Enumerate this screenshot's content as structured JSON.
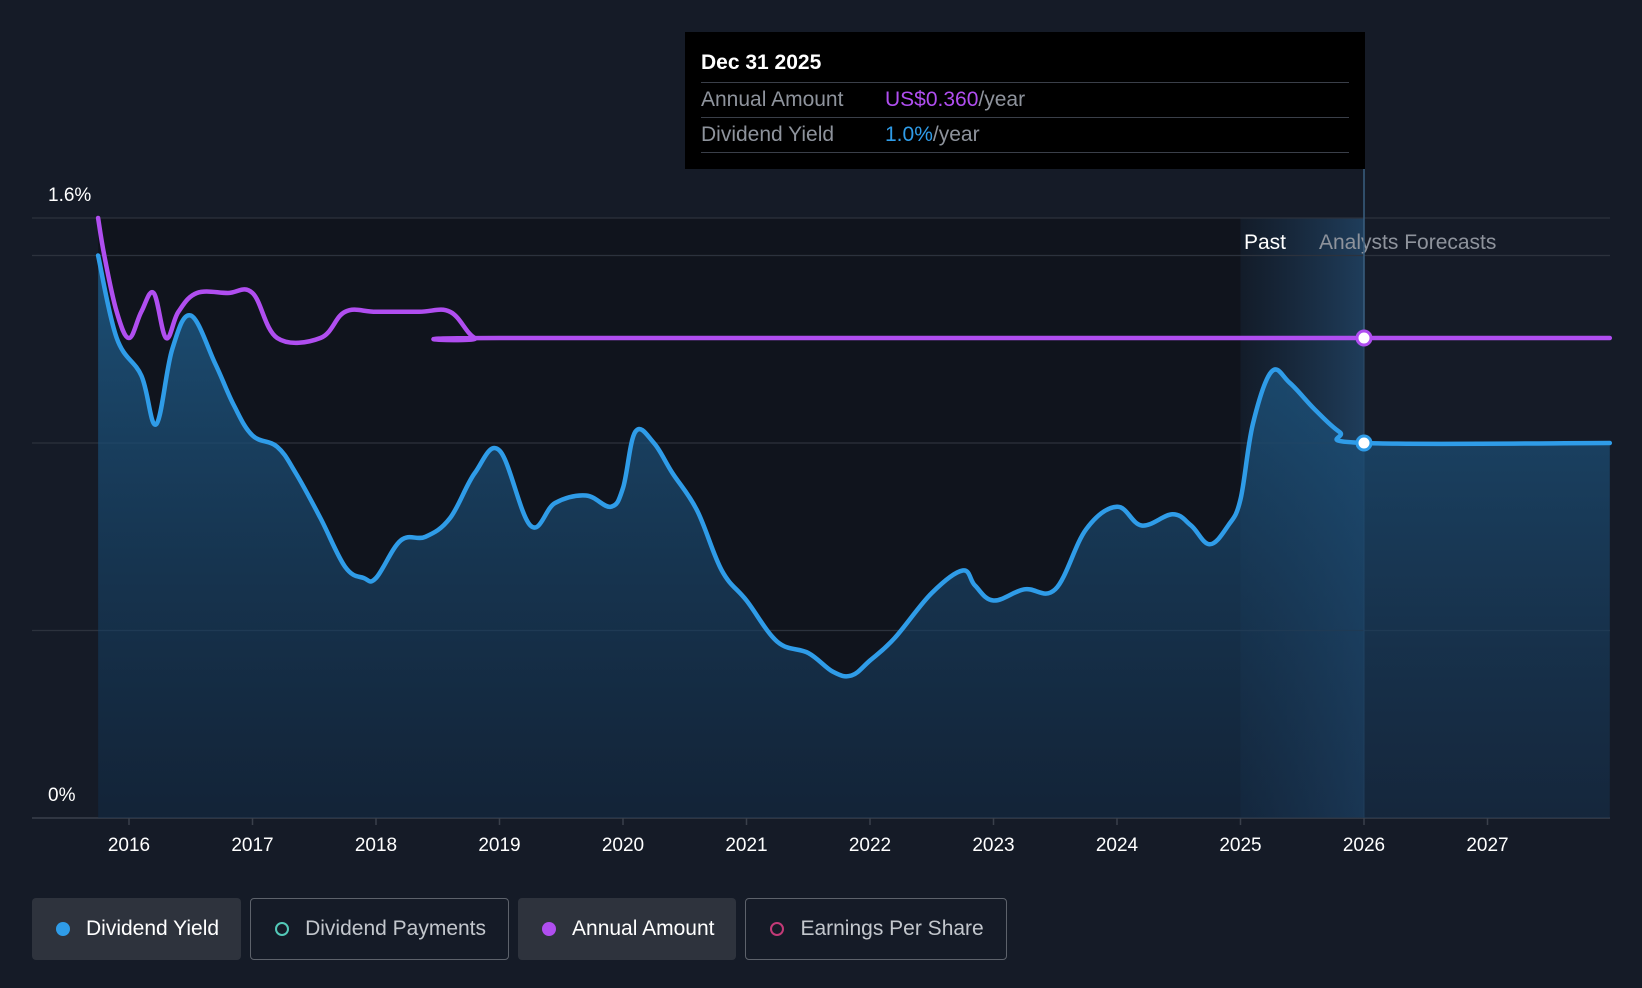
{
  "tooltip": {
    "date": "Dec 31 2025",
    "annual_label": "Annual Amount",
    "annual_value": "US$0.360",
    "annual_unit": "/year",
    "yield_label": "Dividend Yield",
    "yield_value": "1.0%",
    "yield_unit": "/year"
  },
  "zones": {
    "past": "Past",
    "forecast": "Analysts Forecasts"
  },
  "legend": [
    {
      "label": "Dividend Yield",
      "color": "#2f9ce8",
      "active": true,
      "filled": true
    },
    {
      "label": "Dividend Payments",
      "color": "#53c9b8",
      "active": false,
      "filled": false
    },
    {
      "label": "Annual Amount",
      "color": "#b04ef0",
      "active": true,
      "filled": true
    },
    {
      "label": "Earnings Per Share",
      "color": "#c23a77",
      "active": false,
      "filled": false
    }
  ],
  "chart_data": {
    "type": "line",
    "y_axis": {
      "min": 0,
      "max": 1.6,
      "tick_labels": [
        "0%",
        "1.6%"
      ],
      "gridlines": [
        0.5,
        1.0,
        1.5,
        1.6
      ]
    },
    "x_axis": {
      "min": 2015.75,
      "max": 2027.99,
      "tick_labels": [
        "2016",
        "2017",
        "2018",
        "2019",
        "2020",
        "2021",
        "2022",
        "2023",
        "2024",
        "2025",
        "2026",
        "2027"
      ]
    },
    "past_forecast_boundary": 2026.0,
    "highlight_region": [
      2025.0,
      2026.0
    ],
    "series": [
      {
        "name": "Dividend Yield",
        "color": "#2f9ce8",
        "area": true,
        "points": [
          [
            2015.75,
            1.5
          ],
          [
            2015.9,
            1.28
          ],
          [
            2016.1,
            1.18
          ],
          [
            2016.22,
            1.05
          ],
          [
            2016.35,
            1.25
          ],
          [
            2016.5,
            1.34
          ],
          [
            2016.7,
            1.21
          ],
          [
            2016.85,
            1.1
          ],
          [
            2017.0,
            1.02
          ],
          [
            2017.2,
            0.99
          ],
          [
            2017.35,
            0.92
          ],
          [
            2017.55,
            0.8
          ],
          [
            2017.75,
            0.67
          ],
          [
            2017.9,
            0.64
          ],
          [
            2018.0,
            0.64
          ],
          [
            2018.2,
            0.74
          ],
          [
            2018.4,
            0.75
          ],
          [
            2018.6,
            0.8
          ],
          [
            2018.8,
            0.92
          ],
          [
            2019.0,
            0.98
          ],
          [
            2019.25,
            0.78
          ],
          [
            2019.45,
            0.84
          ],
          [
            2019.7,
            0.86
          ],
          [
            2019.9,
            0.83
          ],
          [
            2020.0,
            0.88
          ],
          [
            2020.1,
            1.03
          ],
          [
            2020.25,
            1.0
          ],
          [
            2020.4,
            0.92
          ],
          [
            2020.6,
            0.82
          ],
          [
            2020.8,
            0.66
          ],
          [
            2021.0,
            0.58
          ],
          [
            2021.25,
            0.47
          ],
          [
            2021.5,
            0.44
          ],
          [
            2021.7,
            0.39
          ],
          [
            2021.85,
            0.38
          ],
          [
            2022.0,
            0.42
          ],
          [
            2022.2,
            0.48
          ],
          [
            2022.5,
            0.6
          ],
          [
            2022.75,
            0.66
          ],
          [
            2022.85,
            0.62
          ],
          [
            2023.0,
            0.58
          ],
          [
            2023.25,
            0.61
          ],
          [
            2023.5,
            0.61
          ],
          [
            2023.75,
            0.77
          ],
          [
            2024.0,
            0.83
          ],
          [
            2024.2,
            0.78
          ],
          [
            2024.45,
            0.81
          ],
          [
            2024.6,
            0.78
          ],
          [
            2024.75,
            0.73
          ],
          [
            2024.9,
            0.78
          ],
          [
            2025.0,
            0.85
          ],
          [
            2025.1,
            1.05
          ],
          [
            2025.25,
            1.19
          ],
          [
            2025.4,
            1.16
          ],
          [
            2025.6,
            1.09
          ],
          [
            2025.8,
            1.03
          ],
          [
            2026.0,
            1.0
          ],
          [
            2027.99,
            1.0
          ]
        ]
      },
      {
        "name": "Annual Amount",
        "color": "#b04ef0",
        "area": false,
        "points": [
          [
            2015.75,
            1.6
          ],
          [
            2015.8,
            1.5
          ],
          [
            2015.9,
            1.35
          ],
          [
            2016.0,
            1.28
          ],
          [
            2016.1,
            1.35
          ],
          [
            2016.2,
            1.4
          ],
          [
            2016.3,
            1.28
          ],
          [
            2016.4,
            1.35
          ],
          [
            2016.55,
            1.4
          ],
          [
            2016.8,
            1.4
          ],
          [
            2017.0,
            1.4
          ],
          [
            2017.2,
            1.28
          ],
          [
            2017.55,
            1.28
          ],
          [
            2017.75,
            1.35
          ],
          [
            2018.0,
            1.35
          ],
          [
            2018.35,
            1.35
          ],
          [
            2018.6,
            1.35
          ],
          [
            2018.8,
            1.28
          ],
          [
            2019.0,
            1.28
          ],
          [
            2025.0,
            1.28
          ],
          [
            2026.0,
            1.28
          ],
          [
            2027.99,
            1.28
          ]
        ]
      }
    ],
    "markers": [
      {
        "series": "Annual Amount",
        "x": 2026.0,
        "y": 1.28
      },
      {
        "series": "Dividend Yield",
        "x": 2026.0,
        "y": 1.0
      }
    ]
  }
}
